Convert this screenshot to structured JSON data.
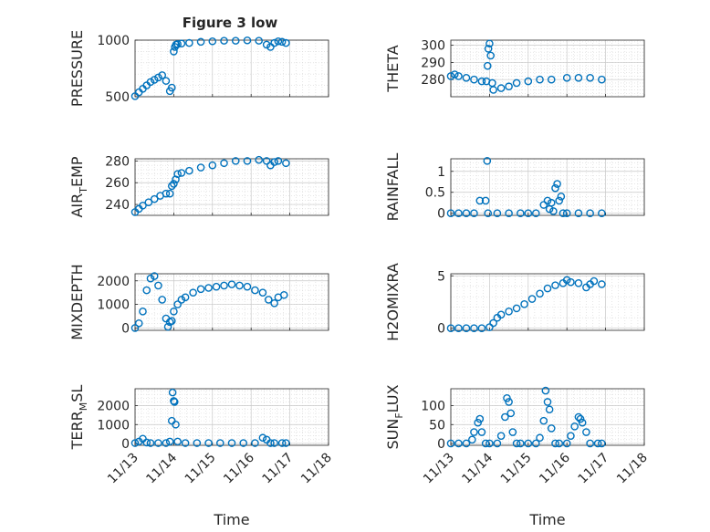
{
  "figure": {
    "title": "Figure 3 low"
  },
  "chart_data": [
    {
      "type": "scatter",
      "title": "Figure 3 low",
      "xlabel": "",
      "ylabel": "PRESSURE",
      "xlim": [
        "2014-11-13",
        "2014-11-18"
      ],
      "xticks": [
        "11/13",
        "11/14",
        "11/15",
        "11/16",
        "11/17",
        "11/18"
      ],
      "ylim": [
        500,
        1000
      ],
      "yticks": [
        500,
        1000
      ],
      "grid": true,
      "marker_color": "#0072BD",
      "x": [
        0.0,
        0.1,
        0.2,
        0.3,
        0.4,
        0.5,
        0.6,
        0.7,
        0.8,
        0.9,
        0.95,
        1.0,
        1.03,
        1.06,
        1.1,
        1.2,
        1.4,
        1.7,
        2.0,
        2.3,
        2.6,
        2.9,
        3.2,
        3.4,
        3.5,
        3.6,
        3.7,
        3.8,
        3.9
      ],
      "y": [
        505,
        540,
        570,
        600,
        630,
        650,
        670,
        690,
        640,
        550,
        580,
        900,
        940,
        960,
        965,
        970,
        975,
        985,
        990,
        995,
        995,
        998,
        995,
        960,
        940,
        975,
        990,
        985,
        975
      ]
    },
    {
      "type": "scatter",
      "xlabel": "",
      "ylabel": "THETA",
      "xlim": [
        "2014-11-13",
        "2014-11-18"
      ],
      "xticks": [
        "11/13",
        "11/14",
        "11/15",
        "11/16",
        "11/17",
        "11/18"
      ],
      "ylim": [
        270,
        303
      ],
      "yticks": [
        280,
        290,
        300
      ],
      "grid": true,
      "marker_color": "#0072BD",
      "x": [
        0.0,
        0.1,
        0.2,
        0.4,
        0.6,
        0.8,
        0.92,
        0.95,
        0.97,
        1.0,
        1.03,
        1.07,
        1.1,
        1.3,
        1.5,
        1.7,
        2.0,
        2.3,
        2.6,
        3.0,
        3.3,
        3.6,
        3.9
      ],
      "y": [
        282,
        283,
        282,
        281,
        280,
        279,
        279,
        288,
        298,
        301,
        294,
        278,
        274,
        275,
        276,
        278,
        279,
        280,
        280,
        281,
        281,
        281,
        280
      ]
    },
    {
      "type": "scatter",
      "xlabel": "",
      "ylabel": "AIR_TEMP",
      "xlim": [
        "2014-11-13",
        "2014-11-18"
      ],
      "xticks": [
        "11/13",
        "11/14",
        "11/15",
        "11/16",
        "11/17",
        "11/18"
      ],
      "ylim": [
        230,
        282
      ],
      "yticks": [
        240,
        260,
        280
      ],
      "grid": true,
      "marker_color": "#0072BD",
      "x": [
        0.0,
        0.1,
        0.2,
        0.35,
        0.5,
        0.65,
        0.8,
        0.9,
        0.95,
        1.0,
        1.05,
        1.1,
        1.2,
        1.4,
        1.7,
        2.0,
        2.3,
        2.6,
        2.9,
        3.2,
        3.4,
        3.5,
        3.6,
        3.7,
        3.9
      ],
      "y": [
        233,
        236,
        239,
        242,
        245,
        248,
        250,
        250,
        257,
        259,
        263,
        268,
        269,
        271,
        274,
        276,
        278,
        280,
        280,
        281,
        280,
        276,
        279,
        280,
        278
      ]
    },
    {
      "type": "scatter",
      "xlabel": "",
      "ylabel": "RAINFALL",
      "xlim": [
        "2014-11-13",
        "2014-11-18"
      ],
      "xticks": [
        "11/13",
        "11/14",
        "11/15",
        "11/16",
        "11/17",
        "11/18"
      ],
      "ylim": [
        -0.05,
        1.3
      ],
      "yticks": [
        0,
        0.5,
        1
      ],
      "grid": true,
      "marker_color": "#0072BD",
      "x": [
        0.0,
        0.2,
        0.4,
        0.6,
        0.75,
        0.9,
        0.94,
        0.96,
        1.2,
        1.5,
        1.8,
        2.0,
        2.2,
        2.4,
        2.5,
        2.55,
        2.6,
        2.65,
        2.7,
        2.75,
        2.8,
        2.85,
        2.9,
        3.0,
        3.3,
        3.6,
        3.9
      ],
      "y": [
        0,
        0,
        0,
        0,
        0.3,
        0.3,
        1.25,
        0,
        0,
        0,
        0,
        0,
        0,
        0.2,
        0.3,
        0.1,
        0.25,
        0.05,
        0.6,
        0.7,
        0.3,
        0.4,
        0,
        0,
        0,
        0,
        0
      ]
    },
    {
      "type": "scatter",
      "xlabel": "",
      "ylabel": "MIXDEPTH",
      "xlim": [
        "2014-11-13",
        "2014-11-18"
      ],
      "xticks": [
        "11/13",
        "11/14",
        "11/15",
        "11/16",
        "11/17",
        "11/18"
      ],
      "ylim": [
        -100,
        2300
      ],
      "yticks": [
        0,
        1000,
        2000
      ],
      "grid": true,
      "marker_color": "#0072BD",
      "x": [
        0.0,
        0.1,
        0.2,
        0.3,
        0.4,
        0.5,
        0.6,
        0.7,
        0.8,
        0.85,
        0.9,
        0.95,
        1.0,
        1.1,
        1.2,
        1.3,
        1.5,
        1.7,
        1.9,
        2.1,
        2.3,
        2.5,
        2.7,
        2.9,
        3.1,
        3.3,
        3.45,
        3.6,
        3.7,
        3.85
      ],
      "y": [
        0,
        200,
        700,
        1600,
        2100,
        2200,
        1800,
        1200,
        400,
        50,
        250,
        300,
        700,
        1000,
        1200,
        1300,
        1500,
        1650,
        1700,
        1750,
        1800,
        1850,
        1800,
        1750,
        1600,
        1500,
        1200,
        1050,
        1300,
        1400
      ]
    },
    {
      "type": "scatter",
      "xlabel": "",
      "ylabel": "H2OMIXRA",
      "xlim": [
        "2014-11-13",
        "2014-11-18"
      ],
      "xticks": [
        "11/13",
        "11/14",
        "11/15",
        "11/16",
        "11/17",
        "11/18"
      ],
      "ylim": [
        -0.2,
        5.2
      ],
      "yticks": [
        0,
        5
      ],
      "grid": true,
      "marker_color": "#0072BD",
      "x": [
        0.0,
        0.2,
        0.4,
        0.6,
        0.8,
        1.0,
        1.1,
        1.2,
        1.3,
        1.5,
        1.7,
        1.9,
        2.1,
        2.3,
        2.5,
        2.7,
        2.9,
        3.0,
        3.1,
        3.3,
        3.5,
        3.6,
        3.7,
        3.9
      ],
      "y": [
        0,
        0,
        0,
        0,
        0,
        0.1,
        0.5,
        1.0,
        1.3,
        1.6,
        1.9,
        2.3,
        2.8,
        3.3,
        3.8,
        4.1,
        4.3,
        4.6,
        4.4,
        4.3,
        3.9,
        4.2,
        4.5,
        4.2
      ]
    },
    {
      "type": "scatter",
      "xlabel": "Time",
      "ylabel": "TERR_MSL",
      "xlim": [
        "2014-11-13",
        "2014-11-18"
      ],
      "xticks": [
        "11/13",
        "11/14",
        "11/15",
        "11/16",
        "11/17",
        "11/18"
      ],
      "ylim": [
        -100,
        2900
      ],
      "yticks": [
        0,
        1000,
        2000
      ],
      "grid": true,
      "marker_color": "#0072BD",
      "x": [
        0.0,
        0.1,
        0.2,
        0.3,
        0.4,
        0.6,
        0.8,
        0.9,
        0.95,
        0.97,
        1.0,
        1.02,
        1.05,
        1.1,
        1.3,
        1.6,
        1.9,
        2.2,
        2.5,
        2.8,
        3.1,
        3.3,
        3.4,
        3.5,
        3.6,
        3.8,
        3.9
      ],
      "y": [
        20,
        100,
        250,
        50,
        20,
        20,
        20,
        100,
        1200,
        2700,
        2250,
        2200,
        1000,
        100,
        20,
        20,
        20,
        20,
        20,
        20,
        20,
        300,
        200,
        20,
        20,
        20,
        20
      ]
    },
    {
      "type": "scatter",
      "xlabel": "Time",
      "ylabel": "SUN_FLUX",
      "xlim": [
        "2014-11-13",
        "2014-11-18"
      ],
      "xticks": [
        "11/13",
        "11/14",
        "11/15",
        "11/16",
        "11/17",
        "11/18"
      ],
      "ylim": [
        -5,
        145
      ],
      "yticks": [
        0,
        50,
        100
      ],
      "grid": true,
      "marker_color": "#0072BD",
      "x": [
        0.0,
        0.2,
        0.4,
        0.55,
        0.6,
        0.7,
        0.75,
        0.8,
        0.9,
        1.0,
        1.2,
        1.3,
        1.4,
        1.45,
        1.5,
        1.55,
        1.6,
        1.7,
        1.8,
        2.0,
        2.2,
        2.3,
        2.4,
        2.45,
        2.5,
        2.55,
        2.6,
        2.7,
        2.8,
        3.0,
        3.1,
        3.2,
        3.3,
        3.35,
        3.4,
        3.5,
        3.6,
        3.8,
        3.9
      ],
      "y": [
        0,
        0,
        0,
        10,
        30,
        55,
        65,
        30,
        0,
        0,
        0,
        20,
        70,
        120,
        110,
        80,
        30,
        0,
        0,
        0,
        0,
        15,
        60,
        140,
        110,
        90,
        40,
        0,
        0,
        0,
        20,
        45,
        70,
        65,
        55,
        30,
        0,
        0,
        0
      ]
    }
  ]
}
